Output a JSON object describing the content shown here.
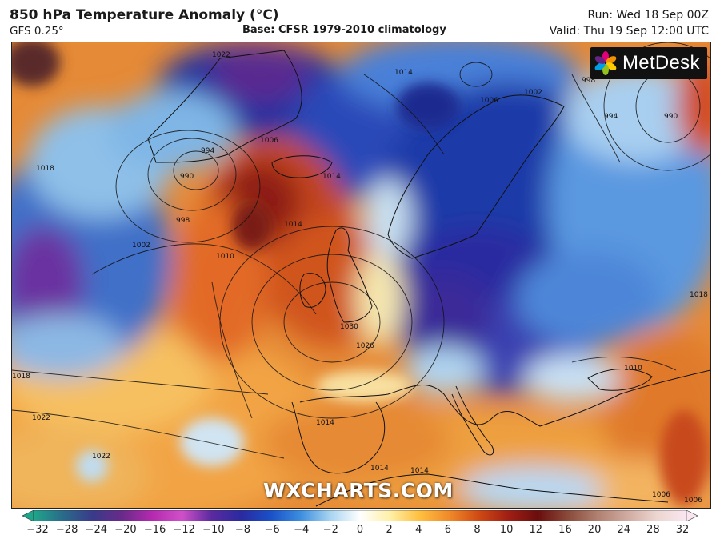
{
  "header": {
    "title": "850 hPa Temperature Anomaly (°C)",
    "model": "GFS 0.25°",
    "base": "Base: CFSR 1979-2010 climatology",
    "run": "Run: Wed 18 Sep 00Z",
    "valid": "Valid: Thu 19 Sep 12:00 UTC"
  },
  "branding": {
    "logo": "MetDesk",
    "watermark": "WXCHARTS.COM"
  },
  "isobars": [
    "1022",
    "1014",
    "1006",
    "1002",
    "998",
    "994",
    "990",
    "1006",
    "1014",
    "1018",
    "1010",
    "1002",
    "998",
    "1014",
    "1022",
    "1030",
    "1026",
    "1018",
    "1022",
    "1014",
    "1014",
    "1014",
    "1010",
    "1018",
    "1006",
    "994",
    "990",
    "1006"
  ],
  "colorbar": {
    "ticks": [
      "−32",
      "−28",
      "−24",
      "−20",
      "−16",
      "−12",
      "−10",
      "−8",
      "−6",
      "−4",
      "−2",
      "0",
      "2",
      "4",
      "6",
      "8",
      "10",
      "12",
      "16",
      "20",
      "24",
      "28",
      "32"
    ],
    "colors": [
      "#1fa58a",
      "#2a6a8a",
      "#3a3a8a",
      "#6a2a8a",
      "#b52ab0",
      "#d050c8",
      "#5a2aa0",
      "#2a2aa0",
      "#1a50c8",
      "#3c8ee0",
      "#a8d4f0",
      "#ffffff",
      "#fff0a8",
      "#ffc040",
      "#f08a2a",
      "#d04a14",
      "#a01e14",
      "#6a0e0e",
      "#8a4a3a",
      "#b08070",
      "#d0aaa0",
      "#ecd6d0",
      "#fae6f0"
    ]
  }
}
